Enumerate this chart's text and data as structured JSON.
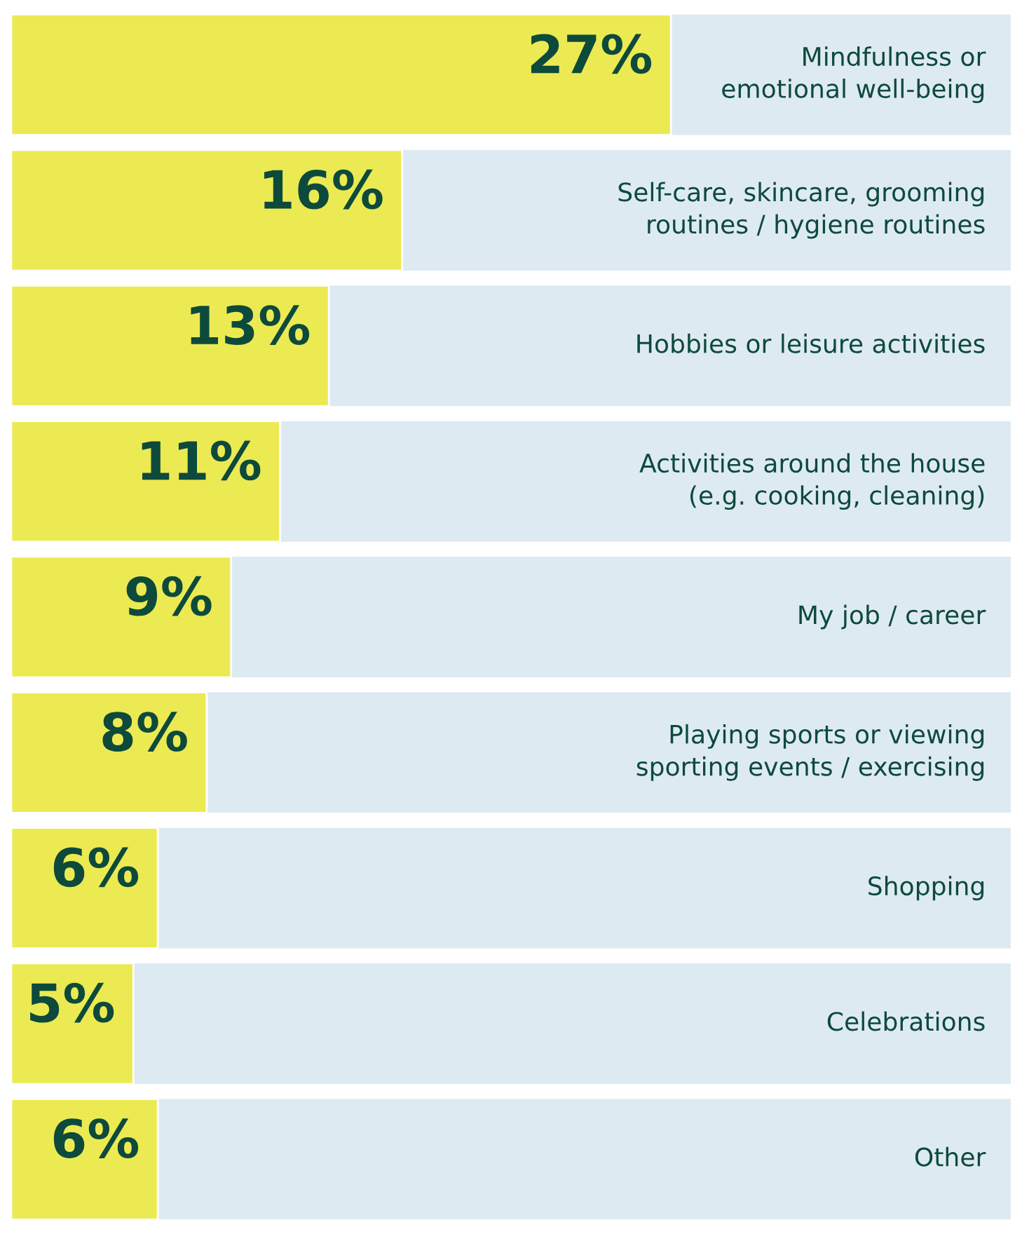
{
  "chart_data": {
    "type": "bar",
    "orientation": "horizontal",
    "color": "#ecea52",
    "categories": [
      "Mindfulness or\nemotional well-being",
      "Self-care, skincare, grooming\nroutines / hygiene routines",
      "Hobbies or leisure activities",
      "Activities around the house\n(e.g. cooking, cleaning)",
      "My job / career",
      "Playing sports or viewing\nsporting events / exercising",
      "Shopping",
      "Celebrations",
      "Other"
    ],
    "values": [
      27,
      16,
      13,
      11,
      9,
      8,
      6,
      5,
      6
    ],
    "value_labels": [
      "27%",
      "16%",
      "13%",
      "11%",
      "9%",
      "8%",
      "6%",
      "5%",
      "6%"
    ]
  }
}
